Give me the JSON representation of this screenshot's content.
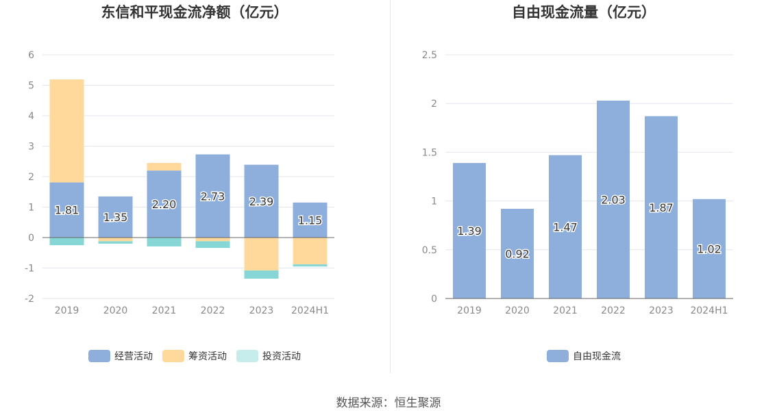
{
  "source": "数据来源：恒生聚源",
  "chart_data": [
    {
      "type": "bar",
      "stacked": true,
      "title": "东信和平现金流净额（亿元）",
      "categories": [
        "2019",
        "2020",
        "2021",
        "2022",
        "2023",
        "2024H1"
      ],
      "ylim": [
        -2,
        6
      ],
      "yticks": [
        -2,
        -1,
        0,
        1,
        2,
        3,
        4,
        5,
        6
      ],
      "grid": true,
      "legend_position": "bottom",
      "series": [
        {
          "name": "经营活动",
          "color": "#8eaedb",
          "values": [
            1.81,
            1.35,
            2.2,
            2.73,
            2.39,
            1.15
          ],
          "labels": [
            "1.81",
            "1.35",
            "2.20",
            "2.73",
            "2.39",
            "1.15"
          ]
        },
        {
          "name": "筹资活动",
          "color": "#ffd89c",
          "values": [
            3.38,
            -0.12,
            0.25,
            -0.12,
            -1.08,
            -0.88
          ]
        },
        {
          "name": "投资活动",
          "color": "#86d6d6",
          "legend_color": "#c6ecec",
          "values": [
            -0.25,
            -0.08,
            -0.29,
            -0.22,
            -0.27,
            -0.07
          ]
        }
      ]
    },
    {
      "type": "bar",
      "title": "自由现金流量（亿元）",
      "categories": [
        "2019",
        "2020",
        "2021",
        "2022",
        "2023",
        "2024H1"
      ],
      "ylim": [
        0,
        2.5
      ],
      "yticks": [
        0,
        0.5,
        1,
        1.5,
        2,
        2.5
      ],
      "grid": true,
      "legend_position": "bottom",
      "series": [
        {
          "name": "自由现金流",
          "color": "#8eaedb",
          "values": [
            1.39,
            0.92,
            1.47,
            2.03,
            1.87,
            1.02
          ],
          "labels": [
            "1.39",
            "0.92",
            "1.47",
            "2.03",
            "1.87",
            "1.02"
          ]
        }
      ]
    }
  ]
}
